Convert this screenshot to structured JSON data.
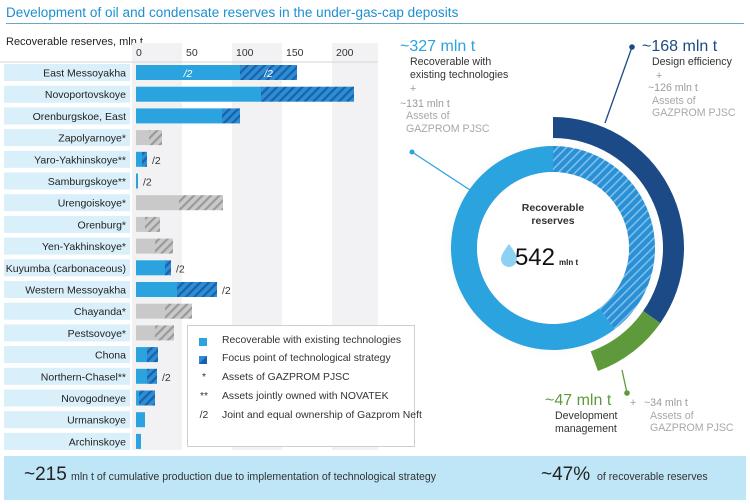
{
  "title": "Development of oil and condensate reserves in the under-gas-cap deposits",
  "colors": {
    "title_blue": "#1b8fd0",
    "existing": "#2ba3de",
    "focus_base": "#2a8fd4",
    "focus_stripe": "#1d5fa8",
    "gazprom_base": "#c9c9c9",
    "gazprom_stripe": "#9a9a9a",
    "label_bg": "#d9effa",
    "design_efficiency": "#1c4a86",
    "development": "#5e9a3c",
    "footer_bg": "#bfe6f7"
  },
  "chart_data": [
    {
      "type": "bar",
      "orientation": "horizontal-stacked",
      "title": "",
      "ylabel": "Recoverable reserves, mln t",
      "xticks": [
        "0",
        "50",
        "100",
        "150",
        "200"
      ],
      "xlim": [
        0,
        240
      ],
      "categories": [
        "East Messoyakha",
        "Novoportovskoye",
        "Orenburgskoe, East",
        "Zapolyarnoye*",
        "Yaro-Yakhinskoye**",
        "Samburgskoye**",
        "Urengoiskoye*",
        "Orenburg*",
        "Yen-Yakhinskoye*",
        "Kuyumba (carbonaceous)",
        "Western Messoyakha",
        "Chayanda*",
        "Pestsovoye*",
        "Chona",
        "Northern-Chasel**",
        "Novogodneye",
        "Urmanskoye",
        "Archinskoye"
      ],
      "gazprom_asset": [
        false,
        false,
        false,
        true,
        false,
        false,
        true,
        true,
        true,
        false,
        false,
        true,
        true,
        false,
        false,
        false,
        false,
        false
      ],
      "series": [
        {
          "name": "Recoverable with existing technologies",
          "values": [
            104,
            125,
            86,
            13,
            6,
            2,
            43,
            9,
            19,
            29,
            41,
            29,
            19,
            11,
            11,
            3,
            9,
            5
          ]
        },
        {
          "name": "Focus point of technological strategy",
          "values": [
            57,
            93,
            18,
            13,
            5,
            0,
            44,
            15,
            18,
            6,
            40,
            27,
            19,
            11,
            10,
            16,
            0,
            0
          ]
        }
      ],
      "bar_annotations": [
        {
          "category": "East Messoyakha",
          "inside_existing": "/2",
          "inside_focus": "/2"
        },
        {
          "category": "Yaro-Yakhinskoye**",
          "after": "/2"
        },
        {
          "category": "Samburgskoye**",
          "after": "/2"
        },
        {
          "category": "Kuyumba (carbonaceous)",
          "after": "/2"
        },
        {
          "category": "Western Messoyakha",
          "after": "/2"
        },
        {
          "category": "Northern-Chasel**",
          "after": "/2"
        }
      ],
      "legend": [
        {
          "symbol": "solid",
          "text": "Recoverable with existing technologies"
        },
        {
          "symbol": "hatched",
          "text": "Focus point of technological strategy"
        },
        {
          "symbol": "*",
          "text": "Assets of GAZPROM PJSC"
        },
        {
          "symbol": "**",
          "text": "Assets jointly owned with NOVATEK"
        },
        {
          "symbol": "/2",
          "text": "Joint and equal ownership of Gazprom Neft"
        }
      ]
    },
    {
      "type": "pie",
      "variant": "donut",
      "center_label": "Recoverable reserves",
      "total_value": "542",
      "total_unit": "mln t",
      "inner_ring": [
        {
          "name": "Focus point of technological strategy",
          "value": 215
        },
        {
          "name": "Recoverable with existing technologies",
          "value": 327
        }
      ],
      "outer_arcs": [
        {
          "name": "Design efficiency",
          "value": 168
        },
        {
          "name": "Development management",
          "value": 47
        }
      ]
    }
  ],
  "annotations": {
    "existing": {
      "value": "~327 mln t",
      "line1": "Recoverable with",
      "line2": "existing technologies",
      "plus": "+",
      "extra_value": "~131 mln t",
      "extra_line1": "Assets of",
      "extra_line2": "GAZPROM PJSC"
    },
    "design": {
      "value": "~168 mln t",
      "line1": "Design efficiency",
      "plus": "+",
      "extra_value": "~126 mln t",
      "extra_line1": "Assets of",
      "extra_line2": "GAZPROM PJSC"
    },
    "development": {
      "value": "~47 mln t",
      "line1": "Development",
      "line2": "management",
      "plus": "+",
      "extra_value": "~34 mln t",
      "extra_line1": "Assets of",
      "extra_line2": "GAZPROM PJSC"
    }
  },
  "footer": {
    "cumulative_value": "~215",
    "cumulative_text": "mln t of cumulative production due to implementation of technological strategy",
    "share_value": "~47%",
    "share_text": "of recoverable reserves"
  }
}
